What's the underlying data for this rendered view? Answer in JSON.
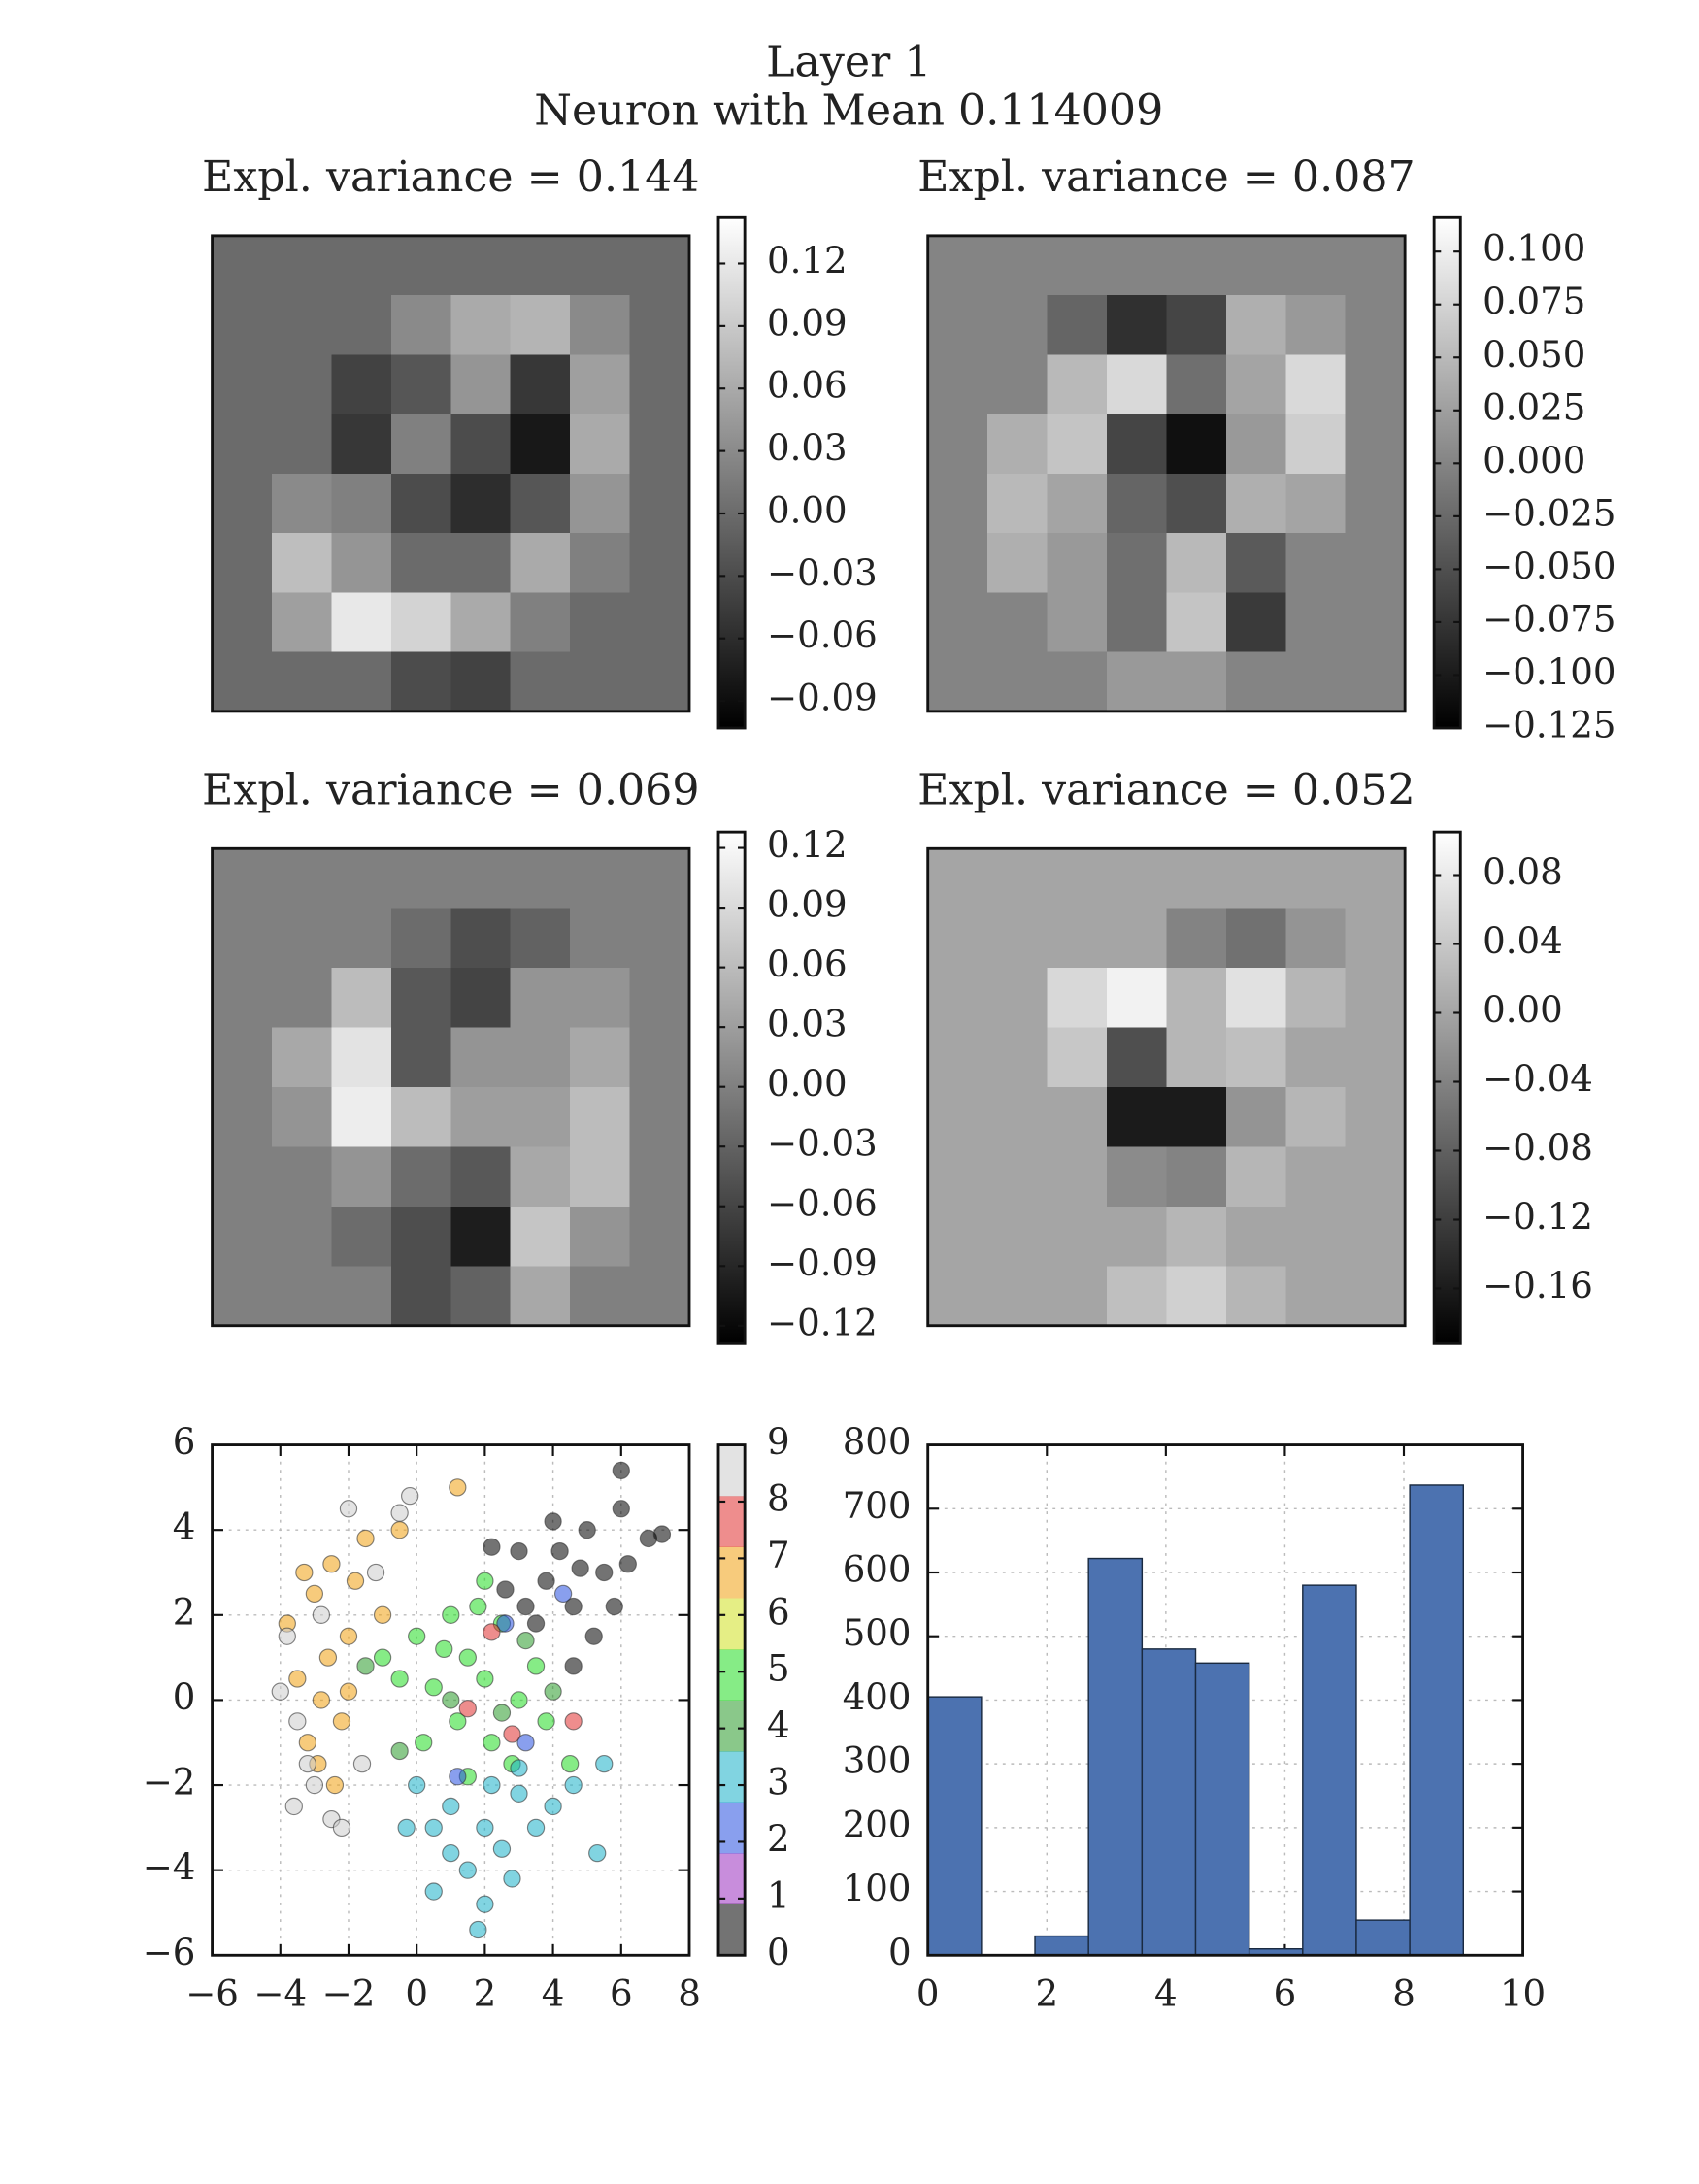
{
  "figure": {
    "title": "Layer 1",
    "subtitle": "Neuron with Mean 0.114009"
  },
  "chart_data": [
    {
      "type": "heatmap",
      "title": "Expl. variance = 0.144",
      "clim": [
        -0.103,
        0.142
      ],
      "cticks": [
        {
          "value": -0.09,
          "label": "−0.09"
        },
        {
          "value": -0.06,
          "label": "−0.06"
        },
        {
          "value": -0.03,
          "label": "−0.03"
        },
        {
          "value": 0,
          "label": "0.00"
        },
        0.03,
        0.06,
        0.09,
        0.12
      ],
      "values": [
        [
          0,
          0,
          0,
          0,
          0,
          0,
          0,
          0
        ],
        [
          0,
          0,
          0,
          0.03,
          0.06,
          0.07,
          0.03,
          0
        ],
        [
          0,
          0,
          -0.04,
          -0.02,
          0.04,
          -0.05,
          0.05,
          0
        ],
        [
          0,
          0,
          -0.05,
          0.02,
          -0.03,
          -0.08,
          0.06,
          0
        ],
        [
          0,
          0.03,
          0.02,
          -0.03,
          -0.06,
          -0.02,
          0.04,
          0
        ],
        [
          0,
          0.08,
          0.04,
          0,
          0,
          0.06,
          0.02,
          0
        ],
        [
          0,
          0.05,
          0.12,
          0.1,
          0.06,
          0.02,
          0,
          0
        ],
        [
          0,
          0,
          0,
          -0.03,
          -0.04,
          0,
          0,
          0
        ]
      ]
    },
    {
      "type": "heatmap",
      "title": "Expl. variance = 0.087",
      "clim": [
        -0.125,
        0.116
      ],
      "cticks": [
        {
          "value": -0.125,
          "label": "−0.125"
        },
        {
          "value": -0.1,
          "label": "−0.100"
        },
        {
          "value": -0.075,
          "label": "−0.075"
        },
        {
          "value": -0.05,
          "label": "−0.050"
        },
        {
          "value": -0.025,
          "label": "−0.025"
        },
        {
          "value": 0,
          "label": "0.000"
        },
        0.025,
        {
          "value": 0.05,
          "label": "0.050"
        },
        0.075,
        {
          "value": 0.1,
          "label": "0.100"
        }
      ],
      "values": [
        [
          0,
          0,
          0,
          0,
          0,
          0,
          0,
          0
        ],
        [
          0,
          0,
          -0.03,
          -0.08,
          -0.06,
          0.04,
          0.02,
          0
        ],
        [
          0,
          0,
          0.05,
          0.08,
          -0.02,
          0.03,
          0.08,
          0
        ],
        [
          0,
          0.04,
          0.06,
          -0.06,
          -0.11,
          0.02,
          0.07,
          0
        ],
        [
          0,
          0.05,
          0.03,
          -0.03,
          -0.05,
          0.04,
          0.03,
          0
        ],
        [
          0,
          0.04,
          0.02,
          -0.02,
          0.05,
          -0.04,
          0,
          0
        ],
        [
          0,
          0,
          0.02,
          -0.02,
          0.06,
          -0.07,
          0,
          0
        ],
        [
          0,
          0,
          0,
          0.02,
          0.02,
          0,
          0,
          0
        ]
      ]
    },
    {
      "type": "heatmap",
      "title": "Expl. variance = 0.069",
      "clim": [
        -0.129,
        0.128
      ],
      "cticks": [
        {
          "value": -0.12,
          "label": "−0.12"
        },
        {
          "value": -0.09,
          "label": "−0.09"
        },
        {
          "value": -0.06,
          "label": "−0.06"
        },
        {
          "value": -0.03,
          "label": "−0.03"
        },
        {
          "value": 0,
          "label": "0.00"
        },
        0.03,
        0.06,
        0.09,
        0.12
      ],
      "values": [
        [
          0,
          0,
          0,
          0,
          0,
          0,
          0,
          0
        ],
        [
          0,
          0,
          0,
          -0.02,
          -0.05,
          -0.03,
          0,
          0
        ],
        [
          0,
          0,
          0.06,
          -0.04,
          -0.06,
          0.02,
          0.02,
          0
        ],
        [
          0,
          0.04,
          0.1,
          -0.04,
          0.02,
          0.02,
          0.04,
          0
        ],
        [
          0,
          0.02,
          0.11,
          0.06,
          0.03,
          0.03,
          0.06,
          0
        ],
        [
          0,
          0,
          0.02,
          -0.02,
          -0.04,
          0.04,
          0.06,
          0
        ],
        [
          0,
          0,
          -0.02,
          -0.05,
          -0.1,
          0.07,
          0.02,
          0
        ],
        [
          0,
          0,
          0,
          -0.05,
          -0.03,
          0.04,
          0,
          0
        ]
      ]
    },
    {
      "type": "heatmap",
      "title": "Expl. variance = 0.052",
      "clim": [
        -0.192,
        0.105
      ],
      "cticks": [
        {
          "value": -0.16,
          "label": "−0.16"
        },
        {
          "value": -0.12,
          "label": "−0.12"
        },
        {
          "value": -0.08,
          "label": "−0.08"
        },
        {
          "value": -0.04,
          "label": "−0.04"
        },
        {
          "value": 0,
          "label": "0.00"
        },
        0.04,
        0.08
      ],
      "values": [
        [
          0,
          0,
          0,
          0,
          0,
          0,
          0,
          0
        ],
        [
          0,
          0,
          0,
          0,
          -0.04,
          -0.06,
          -0.02,
          0
        ],
        [
          0,
          0,
          0.06,
          0.09,
          0.02,
          0.07,
          0.02,
          0
        ],
        [
          0,
          0,
          0.04,
          -0.1,
          0.02,
          0.03,
          0,
          0
        ],
        [
          0,
          0,
          0,
          -0.16,
          -0.16,
          -0.02,
          0.02,
          0
        ],
        [
          0,
          0,
          0,
          -0.03,
          -0.04,
          0.02,
          0,
          0
        ],
        [
          0,
          0,
          0,
          0,
          0.02,
          0,
          0,
          0
        ],
        [
          0,
          0,
          0,
          0.03,
          0.05,
          0.02,
          0,
          0
        ]
      ]
    },
    {
      "type": "scatter",
      "grid": true,
      "xlim": [
        -6,
        8
      ],
      "xticks": [
        {
          "value": -6,
          "label": "−6"
        },
        {
          "value": -4,
          "label": "−4"
        },
        {
          "value": -2,
          "label": "−2"
        },
        0,
        2,
        4,
        6,
        8
      ],
      "ylim": [
        -6,
        6
      ],
      "yticks": [
        {
          "value": -6,
          "label": "−6"
        },
        {
          "value": -4,
          "label": "−4"
        },
        {
          "value": -2,
          "label": "−2"
        },
        0,
        2,
        4,
        6
      ],
      "clim": [
        0,
        9
      ],
      "cticks": [
        0,
        1,
        2,
        3,
        4,
        5,
        6,
        7,
        8,
        9
      ],
      "colors": [
        "#000000",
        "#9b30c0",
        "#2850e0",
        "#1ab0c8",
        "#2a9a2a",
        "#22dd22",
        "#d0e020",
        "#f0a010",
        "#e03030",
        "#cccccc"
      ],
      "x": [
        4.2,
        5,
        5.5,
        3.8,
        4.6,
        6,
        6.2,
        3,
        3.5,
        5.2,
        4.8,
        2.6,
        6.8,
        5.8,
        4,
        3.2,
        7.2,
        4.6,
        6,
        2.2,
        -3,
        -2.5,
        -2,
        -3.5,
        -2.8,
        -2.2,
        -3.2,
        -1.8,
        -2.6,
        -3.8,
        -2,
        -1.5,
        -2.9,
        -3.3,
        -0.5,
        1.2,
        -1,
        -2.4,
        -3.8,
        -3.5,
        -3,
        -2.5,
        -3.2,
        -4,
        -2,
        -0.5,
        -1.2,
        -2.8,
        -1.6,
        -3.6,
        -2.2,
        -0.2,
        0,
        1,
        1.5,
        2,
        0.5,
        1.2,
        2.5,
        3,
        2.2,
        0.8,
        3.5,
        1.8,
        -0.5,
        2.8,
        0.2,
        1.5,
        3.8,
        4.5,
        -1,
        2,
        -0.5,
        1,
        3.2,
        4,
        -1.5,
        2.5,
        1,
        2,
        2.5,
        1.5,
        3,
        0,
        3.5,
        2,
        1,
        4,
        2.8,
        0.5,
        5.3,
        1.8,
        4.6,
        -0.3,
        3,
        2.2,
        0.5,
        5.5,
        2.6,
        4.3,
        1.2,
        3.2,
        2.2,
        1.5,
        4.6,
        2.8
      ],
      "y": [
        3.5,
        4,
        3,
        2.8,
        2.2,
        4.5,
        3.2,
        3.5,
        1.8,
        1.5,
        3.1,
        2.6,
        3.8,
        2.2,
        4.2,
        2.2,
        3.9,
        0.8,
        5.4,
        3.6,
        2.5,
        3.2,
        1.5,
        0.5,
        0,
        -0.5,
        -1,
        2.8,
        1,
        1.8,
        0.2,
        3.8,
        -1.5,
        3,
        4,
        5,
        2,
        -2,
        1.5,
        -0.5,
        -2,
        -2.8,
        -1.5,
        0.2,
        4.5,
        4.4,
        3,
        2,
        -1.5,
        -2.5,
        -3,
        4.8,
        1.5,
        2,
        1,
        0.5,
        0.3,
        -0.5,
        1.8,
        0,
        -1,
        1.2,
        0.8,
        2.2,
        0.5,
        -1.5,
        -1,
        -1.8,
        -0.5,
        -1.5,
        1,
        2.8,
        -1.2,
        0,
        1.4,
        0.2,
        0.8,
        -0.3,
        -2.5,
        -3,
        -3.5,
        -4,
        -2.2,
        -2,
        -3,
        -4.8,
        -3.6,
        -2.5,
        -4.2,
        -3,
        -3.6,
        -5.4,
        -2,
        -3,
        -1.6,
        -2,
        -4.5,
        -1.5,
        1.8,
        2.5,
        -1.8,
        -1,
        1.6,
        -0.2,
        -0.5,
        -0.8
      ],
      "c": [
        0,
        0,
        0,
        0,
        0,
        0,
        0,
        0,
        0,
        0,
        0,
        0,
        0,
        0,
        0,
        0,
        0,
        0,
        0,
        0,
        7,
        7,
        7,
        7,
        7,
        7,
        7,
        7,
        7,
        7,
        7,
        7,
        7,
        7,
        7,
        7,
        7,
        7,
        9,
        9,
        9,
        9,
        9,
        9,
        9,
        9,
        9,
        9,
        9,
        9,
        9,
        9,
        5,
        5,
        5,
        5,
        5,
        5,
        5,
        5,
        5,
        5,
        5,
        5,
        5,
        5,
        5,
        5,
        5,
        5,
        5,
        5,
        4,
        4,
        4,
        4,
        4,
        4,
        3,
        3,
        3,
        3,
        3,
        3,
        3,
        3,
        3,
        3,
        3,
        3,
        3,
        3,
        3,
        3,
        3,
        3,
        3,
        3,
        2,
        2,
        2,
        2,
        8,
        8,
        8,
        8
      ]
    },
    {
      "type": "histogram",
      "grid": true,
      "color": "#4c72b0",
      "bins": [
        0,
        0.9,
        1.8,
        2.7,
        3.6,
        4.5,
        5.4,
        6.3,
        7.2,
        8.1,
        9
      ],
      "counts": [
        405,
        0,
        30,
        622,
        480,
        458,
        10,
        580,
        55,
        737
      ],
      "xlim": [
        0,
        10
      ],
      "xticks": [
        0,
        2,
        4,
        6,
        8,
        10
      ],
      "ylim": [
        0,
        800
      ],
      "yticks": [
        0,
        100,
        200,
        300,
        400,
        500,
        600,
        700,
        800
      ]
    }
  ]
}
